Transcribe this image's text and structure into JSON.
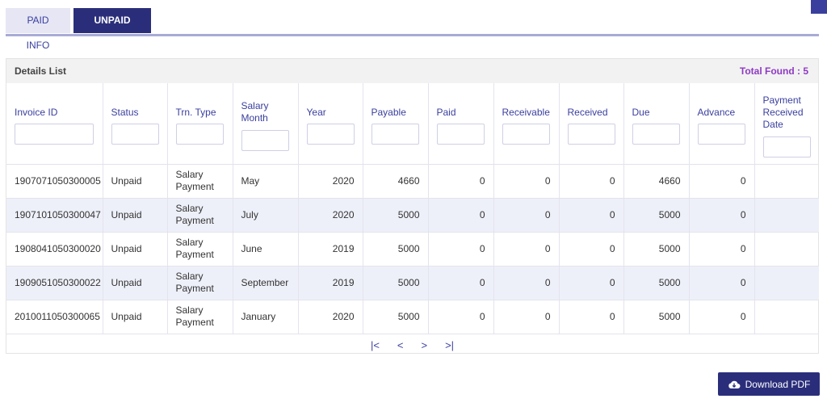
{
  "tabs": [
    {
      "label": "PAID INFO",
      "active": false
    },
    {
      "label": "UNPAID INFO",
      "active": true
    }
  ],
  "panel": {
    "title": "Details List",
    "total_found": "Total Found : 5"
  },
  "columns": [
    "Invoice ID",
    "Status",
    "Trn. Type",
    "Salary Month",
    "Year",
    "Payable",
    "Paid",
    "Receivable",
    "Received",
    "Due",
    "Advance",
    "Payment Received Date"
  ],
  "rows": [
    {
      "invoice_id": "1907071050300005",
      "status": "Unpaid",
      "trn_type": "Salary Payment",
      "salary_month": "May",
      "year": "2020",
      "payable": "4660",
      "paid": "0",
      "receivable": "0",
      "received": "0",
      "due": "4660",
      "advance": "0",
      "payment_received_date": ""
    },
    {
      "invoice_id": "1907101050300047",
      "status": "Unpaid",
      "trn_type": "Salary Payment",
      "salary_month": "July",
      "year": "2020",
      "payable": "5000",
      "paid": "0",
      "receivable": "0",
      "received": "0",
      "due": "5000",
      "advance": "0",
      "payment_received_date": ""
    },
    {
      "invoice_id": "1908041050300020",
      "status": "Unpaid",
      "trn_type": "Salary Payment",
      "salary_month": "June",
      "year": "2019",
      "payable": "5000",
      "paid": "0",
      "receivable": "0",
      "received": "0",
      "due": "5000",
      "advance": "0",
      "payment_received_date": ""
    },
    {
      "invoice_id": "1909051050300022",
      "status": "Unpaid",
      "trn_type": "Salary Payment",
      "salary_month": "September",
      "year": "2019",
      "payable": "5000",
      "paid": "0",
      "receivable": "0",
      "received": "0",
      "due": "5000",
      "advance": "0",
      "payment_received_date": ""
    },
    {
      "invoice_id": "2010011050300065",
      "status": "Unpaid",
      "trn_type": "Salary Payment",
      "salary_month": "January",
      "year": "2020",
      "payable": "5000",
      "paid": "0",
      "receivable": "0",
      "received": "0",
      "due": "5000",
      "advance": "0",
      "payment_received_date": ""
    }
  ],
  "pager": {
    "first": "|<",
    "prev": "<",
    "next": ">",
    "last": ">|"
  },
  "download": {
    "label": "Download PDF",
    "icon": "cloud-download-icon"
  },
  "colors": {
    "accent": "#2a2e7a",
    "tab_inactive": "#e6e6f4",
    "row_alt": "#eef0f9",
    "total_found": "#8e3ac4"
  }
}
